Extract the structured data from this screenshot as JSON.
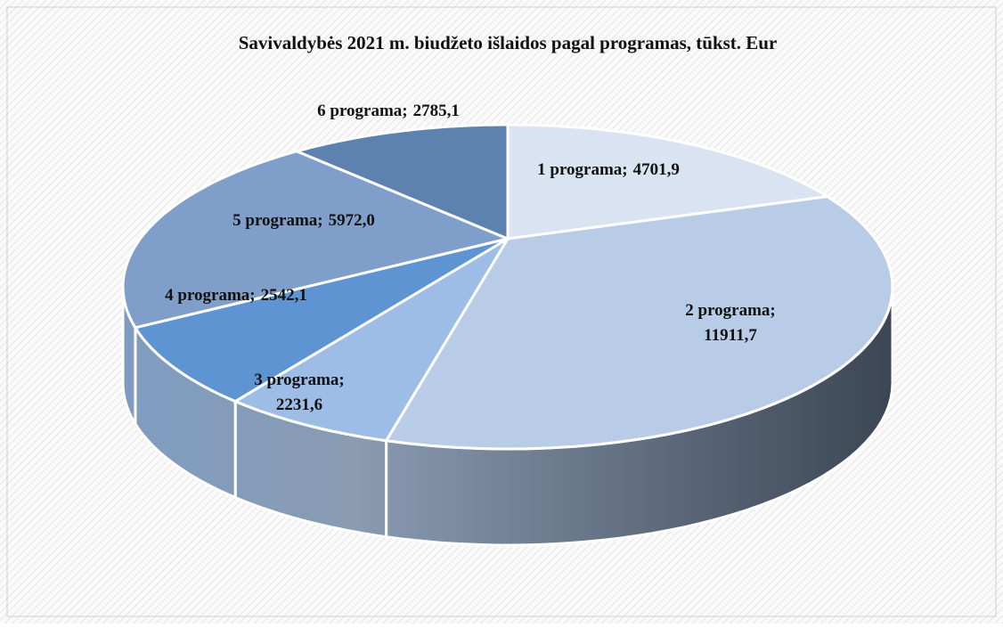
{
  "chart_data": {
    "type": "pie3d",
    "title": "Savivaldybės 2021 m. biudžeto išlaidos pagal programas, tūkst. Eur",
    "categories": [
      "1 programa",
      "2 programa",
      "3 programa",
      "4 programa",
      "5 programa",
      "6 programa"
    ],
    "values": [
      4701.9,
      11911.7,
      2231.6,
      2542.1,
      5972.0,
      2785.1
    ],
    "value_labels": [
      "4701,9",
      "11911,7",
      "2231,6",
      "2542,1",
      "5972,0",
      "2785,1"
    ],
    "label_separator": ";",
    "colors": [
      "#d9e3f1",
      "#b8cbe7",
      "#9dbde6",
      "#5f94d2",
      "#7f9fca",
      "#5e82b0"
    ]
  }
}
